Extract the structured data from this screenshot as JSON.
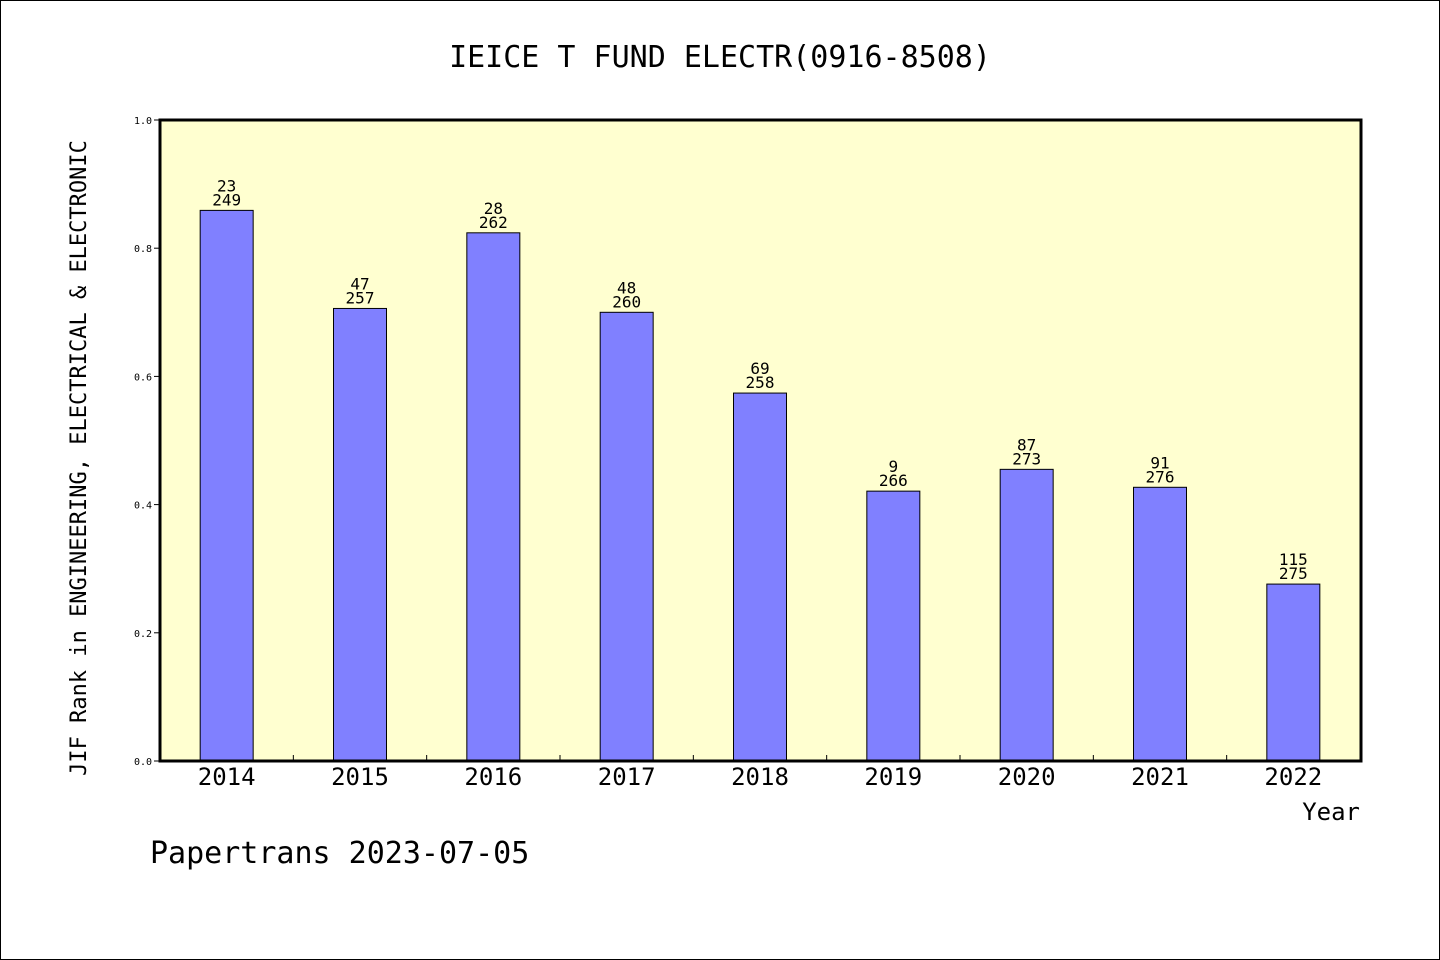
{
  "chart_data": {
    "type": "bar",
    "title": "IEICE T FUND ELECTR(0916-8508)",
    "ylabel": "JIF Rank in ENGINEERING, ELECTRICAL & ELECTRONIC",
    "xlabel": "Year",
    "ylim": [
      0,
      1.0
    ],
    "yticks": [
      "0.0",
      "0.2",
      "0.4",
      "0.6",
      "0.8",
      "1.0"
    ],
    "ytick_values": [
      0,
      0.2,
      0.4,
      0.6,
      0.8,
      1.0
    ],
    "categories": [
      "2014",
      "2015",
      "2016",
      "2017",
      "2018",
      "2019",
      "2020",
      "2021",
      "2022"
    ],
    "values": [
      0.859,
      0.706,
      0.824,
      0.7,
      0.574,
      0.421,
      0.455,
      0.427,
      0.276
    ],
    "rank": [
      "23",
      "47",
      "28",
      "48",
      "69",
      "9",
      "87",
      "91",
      "115"
    ],
    "total": [
      "249",
      "257",
      "262",
      "260",
      "258",
      "266",
      "273",
      "276",
      "275"
    ],
    "grid": false,
    "bar_color": "#8080ff",
    "plot_background": "#ffffd0"
  },
  "footer": "Papertrans 2023-07-05"
}
